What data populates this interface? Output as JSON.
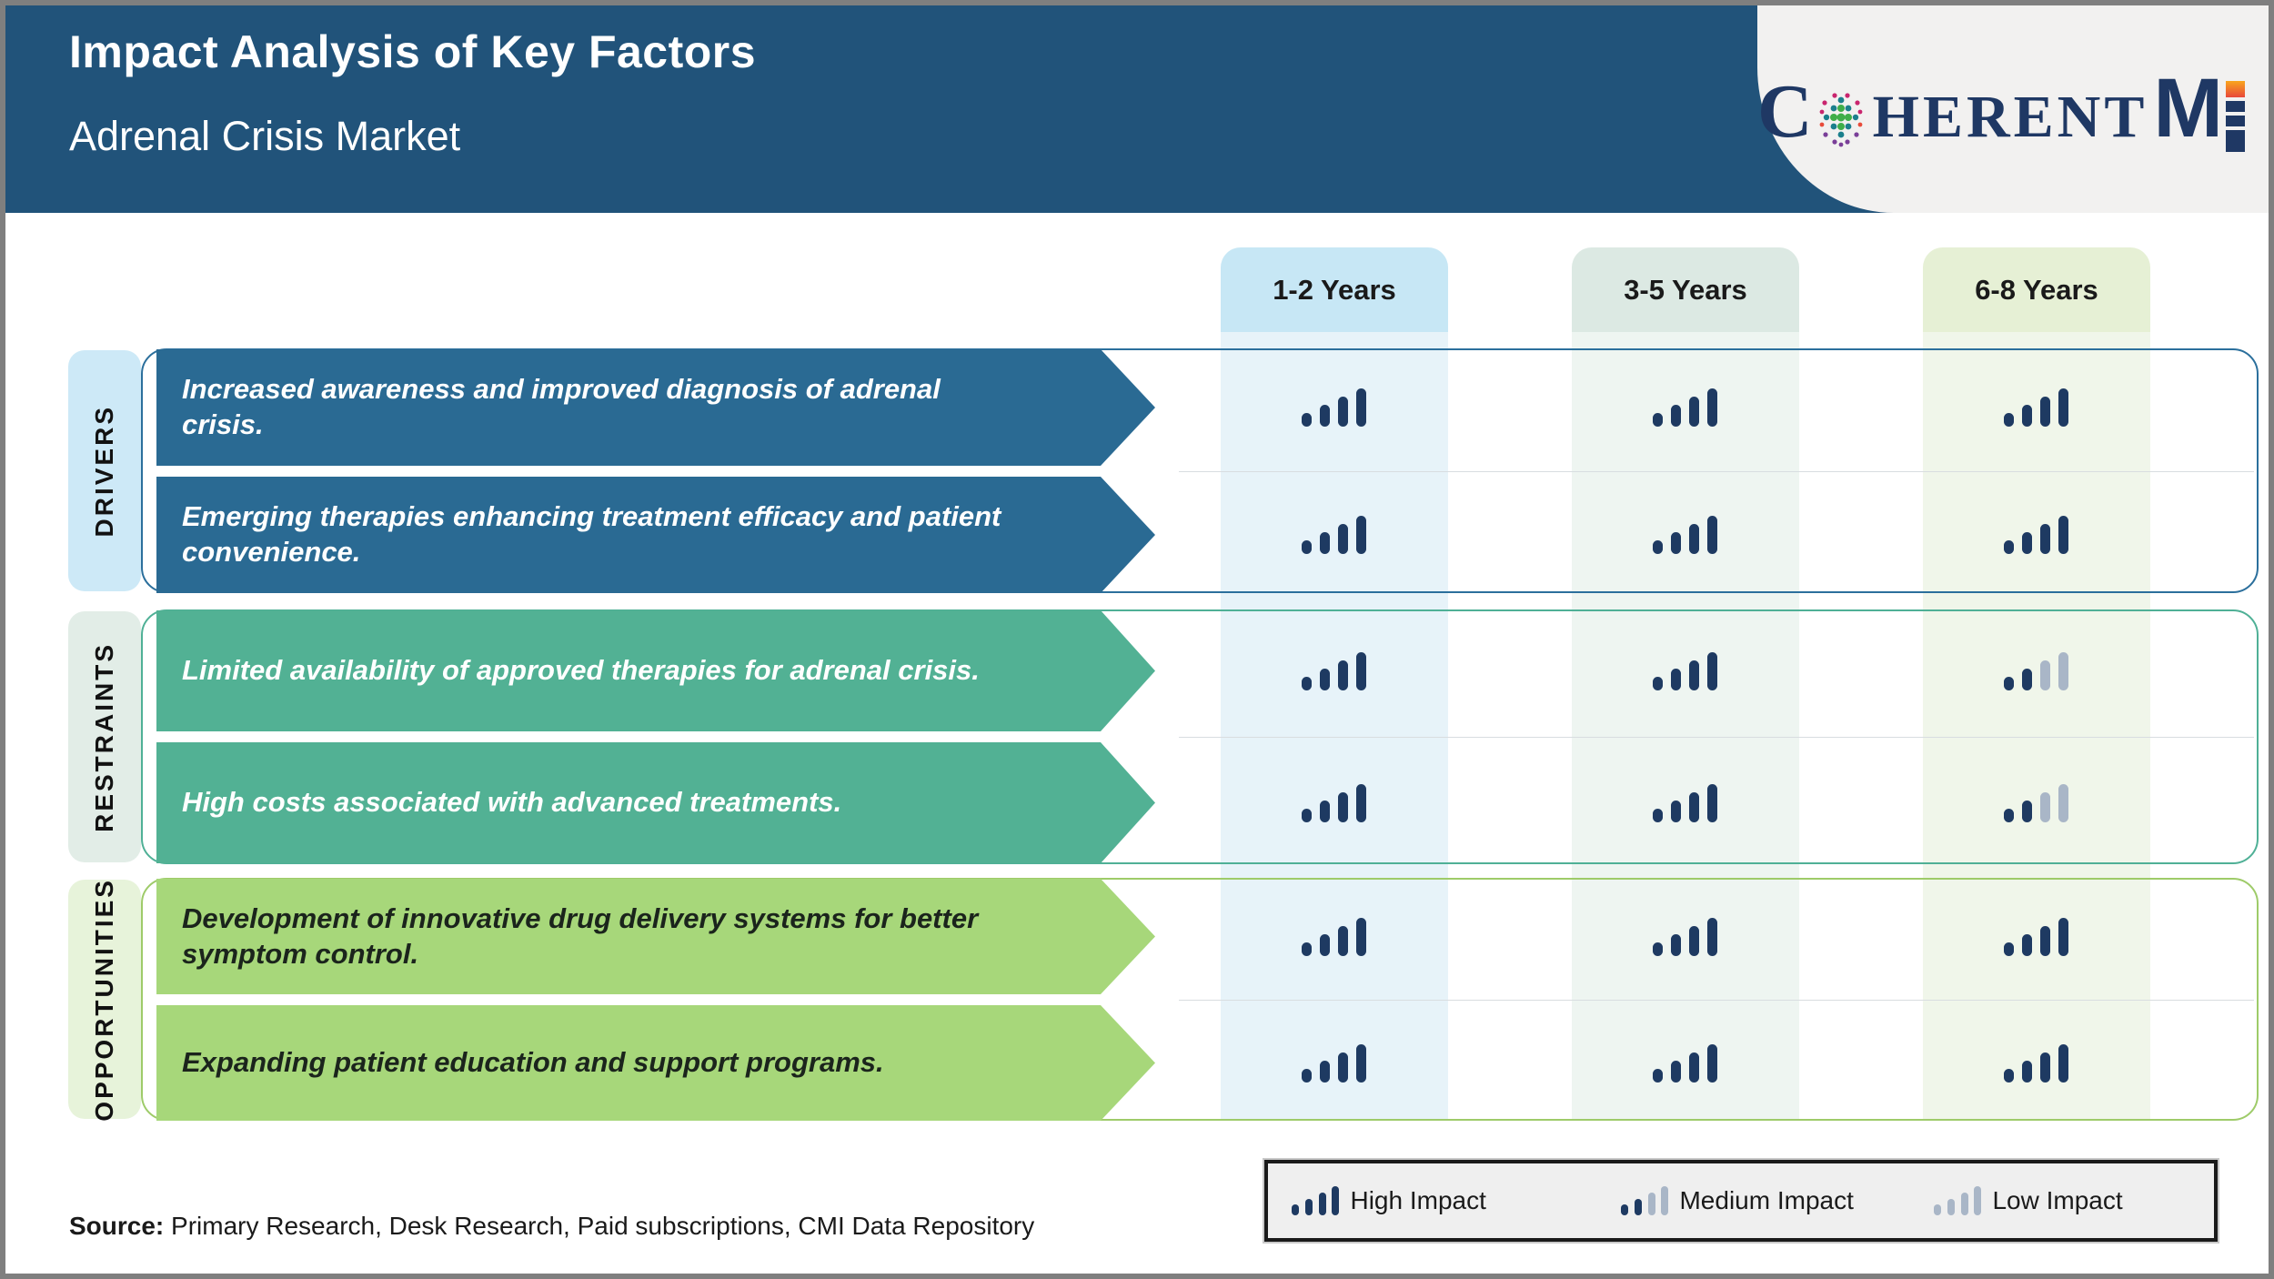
{
  "header": {
    "title": "Impact Analysis of Key Factors",
    "subtitle": "Adrenal Crisis Market"
  },
  "logo": {
    "c": "C",
    "herent": "HERENT",
    "m": "M",
    "i": "I",
    "full_text": "COHERENTMI"
  },
  "columns": [
    {
      "label": "1-2 Years",
      "header_bg": "#c7e7f5",
      "stripe_bg": "#e7f3f9"
    },
    {
      "label": "3-5 Years",
      "header_bg": "#dce9e3",
      "stripe_bg": "#eef5f1"
    },
    {
      "label": "6-8 Years",
      "header_bg": "#e6f0d5",
      "stripe_bg": "#f0f6ea"
    }
  ],
  "sections": [
    {
      "label": "DRIVERS",
      "arrow_color": "#2a6a93",
      "border_color": "#2b6f9c",
      "label_bg": "#cde9f7",
      "text_color": "#ffffff",
      "rows": [
        {
          "text": "Increased awareness and improved diagnosis of adrenal crisis.",
          "impacts": [
            "high",
            "high",
            "high"
          ]
        },
        {
          "text": "Emerging therapies enhancing treatment efficacy and patient convenience.",
          "impacts": [
            "high",
            "high",
            "high"
          ]
        }
      ]
    },
    {
      "label": "RESTRAINTS",
      "arrow_color": "#52b194",
      "border_color": "#4fb096",
      "label_bg": "#e2ede7",
      "text_color": "#ffffff",
      "rows": [
        {
          "text": "Limited availability of approved therapies for adrenal crisis.",
          "impacts": [
            "high",
            "high",
            "medium"
          ]
        },
        {
          "text": "High costs associated with advanced treatments.",
          "impacts": [
            "high",
            "high",
            "medium"
          ]
        }
      ]
    },
    {
      "label": "OPPORTUNITIES",
      "arrow_color": "#a7d77a",
      "border_color": "#9ecb69",
      "label_bg": "#e7f3da",
      "text_color": "#1b241c",
      "rows": [
        {
          "text": "Development of innovative drug delivery systems for better symptom control.",
          "impacts": [
            "high",
            "high",
            "high"
          ]
        },
        {
          "text": "Expanding patient education and support programs.",
          "impacts": [
            "high",
            "high",
            "high"
          ]
        }
      ]
    }
  ],
  "legend": [
    {
      "level": "high",
      "label": "High Impact"
    },
    {
      "level": "medium",
      "label": "Medium Impact"
    },
    {
      "level": "low",
      "label": "Low Impact"
    }
  ],
  "source": {
    "label": "Source:",
    "text": " Primary Research, Desk Research, Paid subscriptions, CMI Data Repository"
  },
  "colors": {
    "header_bg": "#21537a",
    "bar_high": "#1e3a62",
    "bar_low": "#a9b6c7",
    "logo_navy": "#1f3864",
    "frame": "#7f7f7f"
  },
  "chart_data": {
    "type": "table",
    "title": "Impact Analysis of Key Factors — Adrenal Crisis Market",
    "columns": [
      "1-2 Years",
      "3-5 Years",
      "6-8 Years"
    ],
    "rows": [
      {
        "category": "DRIVERS",
        "factor": "Increased awareness and improved diagnosis of adrenal crisis.",
        "impact": [
          "High",
          "High",
          "High"
        ]
      },
      {
        "category": "DRIVERS",
        "factor": "Emerging therapies enhancing treatment efficacy and patient convenience.",
        "impact": [
          "High",
          "High",
          "High"
        ]
      },
      {
        "category": "RESTRAINTS",
        "factor": "Limited availability of approved therapies for adrenal crisis.",
        "impact": [
          "High",
          "High",
          "Medium"
        ]
      },
      {
        "category": "RESTRAINTS",
        "factor": "High costs associated with advanced treatments.",
        "impact": [
          "High",
          "High",
          "Medium"
        ]
      },
      {
        "category": "OPPORTUNITIES",
        "factor": "Development of innovative drug delivery systems for better symptom control.",
        "impact": [
          "High",
          "High",
          "High"
        ]
      },
      {
        "category": "OPPORTUNITIES",
        "factor": "Expanding patient education and support programs.",
        "impact": [
          "High",
          "High",
          "High"
        ]
      }
    ],
    "legend": [
      "High Impact",
      "Medium Impact",
      "Low Impact"
    ]
  }
}
